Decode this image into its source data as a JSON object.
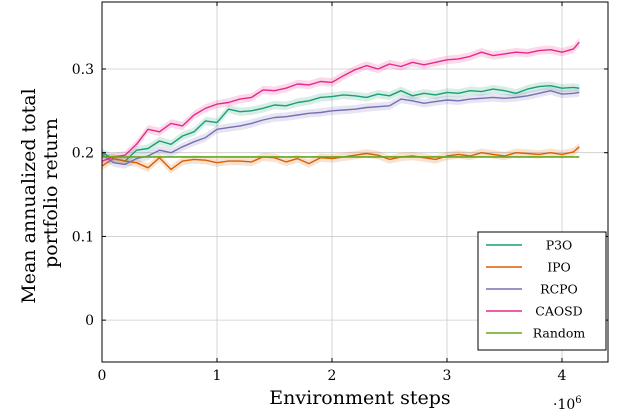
{
  "chart_data": {
    "type": "line",
    "xlabel": "Environment steps",
    "x_multiplier_label": "·10",
    "x_multiplier_exp": "6",
    "ylabel_lines": [
      "Mean annualized total",
      "portfolio return"
    ],
    "xlim": [
      0,
      4.4
    ],
    "ylim": [
      -0.05,
      0.38
    ],
    "x_ticks": [
      0,
      1,
      2,
      3,
      4
    ],
    "x_tick_labels": [
      "0",
      "1",
      "2",
      "3",
      "4"
    ],
    "y_ticks": [
      0,
      0.1,
      0.2,
      0.3
    ],
    "y_tick_labels": [
      "0",
      "0.1",
      "0.2",
      "0.3"
    ],
    "grid": true,
    "legend_position": "bottom-right",
    "x": [
      0.0,
      0.1,
      0.2,
      0.3,
      0.4,
      0.5,
      0.6,
      0.7,
      0.8,
      0.9,
      1.0,
      1.1,
      1.2,
      1.3,
      1.4,
      1.5,
      1.6,
      1.7,
      1.8,
      1.9,
      2.0,
      2.1,
      2.2,
      2.3,
      2.4,
      2.5,
      2.6,
      2.7,
      2.8,
      2.9,
      3.0,
      3.1,
      3.2,
      3.3,
      3.4,
      3.5,
      3.6,
      3.7,
      3.8,
      3.9,
      4.0,
      4.1,
      4.15
    ],
    "series": [
      {
        "name": "P3O",
        "color": "#1b9e77",
        "values": [
          0.2,
          0.193,
          0.19,
          0.203,
          0.205,
          0.214,
          0.21,
          0.22,
          0.225,
          0.238,
          0.236,
          0.252,
          0.249,
          0.25,
          0.253,
          0.257,
          0.256,
          0.26,
          0.262,
          0.266,
          0.267,
          0.269,
          0.268,
          0.266,
          0.27,
          0.268,
          0.274,
          0.268,
          0.271,
          0.269,
          0.272,
          0.271,
          0.274,
          0.273,
          0.276,
          0.274,
          0.271,
          0.276,
          0.279,
          0.28,
          0.277,
          0.278,
          0.277
        ]
      },
      {
        "name": "IPO",
        "color": "#d95f02",
        "values": [
          0.184,
          0.193,
          0.19,
          0.188,
          0.182,
          0.194,
          0.18,
          0.19,
          0.192,
          0.191,
          0.188,
          0.19,
          0.19,
          0.189,
          0.195,
          0.194,
          0.189,
          0.193,
          0.187,
          0.194,
          0.193,
          0.195,
          0.197,
          0.199,
          0.197,
          0.192,
          0.195,
          0.196,
          0.194,
          0.192,
          0.196,
          0.198,
          0.196,
          0.2,
          0.198,
          0.196,
          0.2,
          0.199,
          0.198,
          0.2,
          0.198,
          0.201,
          0.207
        ]
      },
      {
        "name": "RCPO",
        "color": "#7570b3",
        "values": [
          0.198,
          0.188,
          0.186,
          0.193,
          0.196,
          0.203,
          0.2,
          0.207,
          0.213,
          0.218,
          0.228,
          0.23,
          0.232,
          0.235,
          0.239,
          0.242,
          0.243,
          0.245,
          0.247,
          0.248,
          0.25,
          0.251,
          0.252,
          0.254,
          0.255,
          0.256,
          0.264,
          0.262,
          0.259,
          0.261,
          0.263,
          0.262,
          0.264,
          0.265,
          0.266,
          0.265,
          0.266,
          0.268,
          0.271,
          0.274,
          0.27,
          0.271,
          0.272
        ]
      },
      {
        "name": "CAOSD",
        "color": "#e7298a",
        "values": [
          0.19,
          0.195,
          0.197,
          0.21,
          0.228,
          0.225,
          0.235,
          0.232,
          0.245,
          0.253,
          0.258,
          0.26,
          0.264,
          0.266,
          0.275,
          0.274,
          0.277,
          0.282,
          0.281,
          0.285,
          0.284,
          0.292,
          0.299,
          0.304,
          0.3,
          0.306,
          0.303,
          0.308,
          0.305,
          0.308,
          0.311,
          0.312,
          0.315,
          0.32,
          0.316,
          0.318,
          0.32,
          0.319,
          0.322,
          0.323,
          0.32,
          0.324,
          0.332
        ]
      },
      {
        "name": "Random",
        "color": "#66a61e",
        "values": [
          0.195,
          0.195,
          0.195,
          0.195,
          0.195,
          0.195,
          0.195,
          0.195,
          0.195,
          0.195,
          0.195,
          0.195,
          0.195,
          0.195,
          0.195,
          0.195,
          0.195,
          0.195,
          0.195,
          0.195,
          0.195,
          0.195,
          0.195,
          0.195,
          0.195,
          0.195,
          0.195,
          0.195,
          0.195,
          0.195,
          0.195,
          0.195,
          0.195,
          0.195,
          0.195,
          0.195,
          0.195,
          0.195,
          0.195,
          0.195,
          0.195,
          0.195,
          0.195
        ]
      }
    ]
  }
}
